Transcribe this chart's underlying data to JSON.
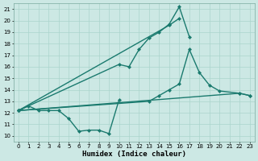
{
  "bg_color": "#cce8e4",
  "grid_color": "#aad4cc",
  "line_color": "#1a7a6e",
  "markersize": 2.5,
  "linewidth": 1.0,
  "xlabel": "Humidex (Indice chaleur)",
  "xlabel_fontsize": 6.5,
  "xlim": [
    -0.5,
    23.5
  ],
  "ylim": [
    9.5,
    21.5
  ],
  "xticks": [
    0,
    1,
    2,
    3,
    4,
    5,
    6,
    7,
    8,
    9,
    10,
    11,
    12,
    13,
    14,
    15,
    16,
    17,
    18,
    19,
    20,
    21,
    22,
    23
  ],
  "yticks": [
    10,
    11,
    12,
    13,
    14,
    15,
    16,
    17,
    18,
    19,
    20,
    21
  ],
  "series": [
    {
      "x": [
        0,
        1,
        2,
        3,
        4,
        5,
        6,
        7,
        8,
        9,
        10
      ],
      "y": [
        12.2,
        12.6,
        12.2,
        12.2,
        12.2,
        11.5,
        10.4,
        10.5,
        10.5,
        10.2,
        13.1
      ]
    },
    {
      "x": [
        0,
        10,
        11,
        12,
        13,
        14,
        15,
        16,
        17
      ],
      "y": [
        12.2,
        16.2,
        16.0,
        17.5,
        18.5,
        19.0,
        19.7,
        21.2,
        18.6
      ]
    },
    {
      "x": [
        0,
        15,
        16
      ],
      "y": [
        12.2,
        19.6,
        20.2
      ]
    },
    {
      "x": [
        0,
        13,
        14,
        15,
        16,
        17,
        18,
        19,
        20,
        22,
        23
      ],
      "y": [
        12.2,
        13.0,
        13.5,
        14.0,
        14.5,
        17.5,
        15.5,
        14.4,
        13.9,
        13.7,
        13.5
      ]
    },
    {
      "x": [
        0,
        22,
        23
      ],
      "y": [
        12.2,
        13.7,
        13.5
      ]
    }
  ]
}
